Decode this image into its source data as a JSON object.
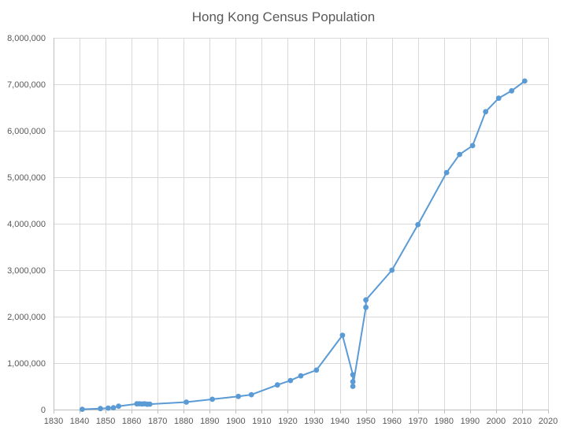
{
  "chart_data": {
    "type": "scatter",
    "title": "Hong Kong Census Population",
    "xlabel": "",
    "ylabel": "",
    "xlim": [
      1830,
      2020
    ],
    "ylim": [
      0,
      8000000
    ],
    "x_ticks": [
      1830,
      1840,
      1850,
      1860,
      1870,
      1880,
      1890,
      1900,
      1910,
      1920,
      1930,
      1940,
      1950,
      1960,
      1970,
      1980,
      1990,
      2000,
      2010,
      2020
    ],
    "y_ticks": [
      0,
      1000000,
      2000000,
      3000000,
      4000000,
      5000000,
      6000000,
      7000000,
      8000000
    ],
    "y_tick_labels": [
      "0",
      "1,000,000",
      "2,000,000",
      "3,000,000",
      "4,000,000",
      "5,000,000",
      "6,000,000",
      "7,000,000",
      "8,000,000"
    ],
    "grid": true,
    "legend": "none",
    "color": "#5b9bd5",
    "series": [
      {
        "points": [
          {
            "x": 1841,
            "y": 7500
          },
          {
            "x": 1848,
            "y": 21500
          },
          {
            "x": 1851,
            "y": 33000
          },
          {
            "x": 1853,
            "y": 39000
          },
          {
            "x": 1855,
            "y": 72600
          },
          {
            "x": 1862,
            "y": 124000
          },
          {
            "x": 1863,
            "y": 125000
          },
          {
            "x": 1864,
            "y": 121000
          },
          {
            "x": 1865,
            "y": 125500
          },
          {
            "x": 1866,
            "y": 115000
          },
          {
            "x": 1867,
            "y": 117000
          },
          {
            "x": 1881,
            "y": 160400
          },
          {
            "x": 1891,
            "y": 221400
          },
          {
            "x": 1901,
            "y": 283000
          },
          {
            "x": 1906,
            "y": 320000
          },
          {
            "x": 1916,
            "y": 530000
          },
          {
            "x": 1921,
            "y": 625000
          },
          {
            "x": 1925,
            "y": 725000
          },
          {
            "x": 1931,
            "y": 849000
          },
          {
            "x": 1941,
            "y": 1600000
          },
          {
            "x": 1945,
            "y": 750000
          },
          {
            "x": 1945,
            "y": 600000
          },
          {
            "x": 1945,
            "y": 500000
          },
          {
            "x": 1950,
            "y": 2200000
          },
          {
            "x": 1950,
            "y": 2360000
          },
          {
            "x": 1960,
            "y": 3000000
          },
          {
            "x": 1970,
            "y": 3980000
          },
          {
            "x": 1981,
            "y": 5100000
          },
          {
            "x": 1986,
            "y": 5490000
          },
          {
            "x": 1991,
            "y": 5680000
          },
          {
            "x": 1996,
            "y": 6410000
          },
          {
            "x": 2001,
            "y": 6700000
          },
          {
            "x": 2006,
            "y": 6860000
          },
          {
            "x": 2011,
            "y": 7070000
          }
        ]
      }
    ]
  }
}
